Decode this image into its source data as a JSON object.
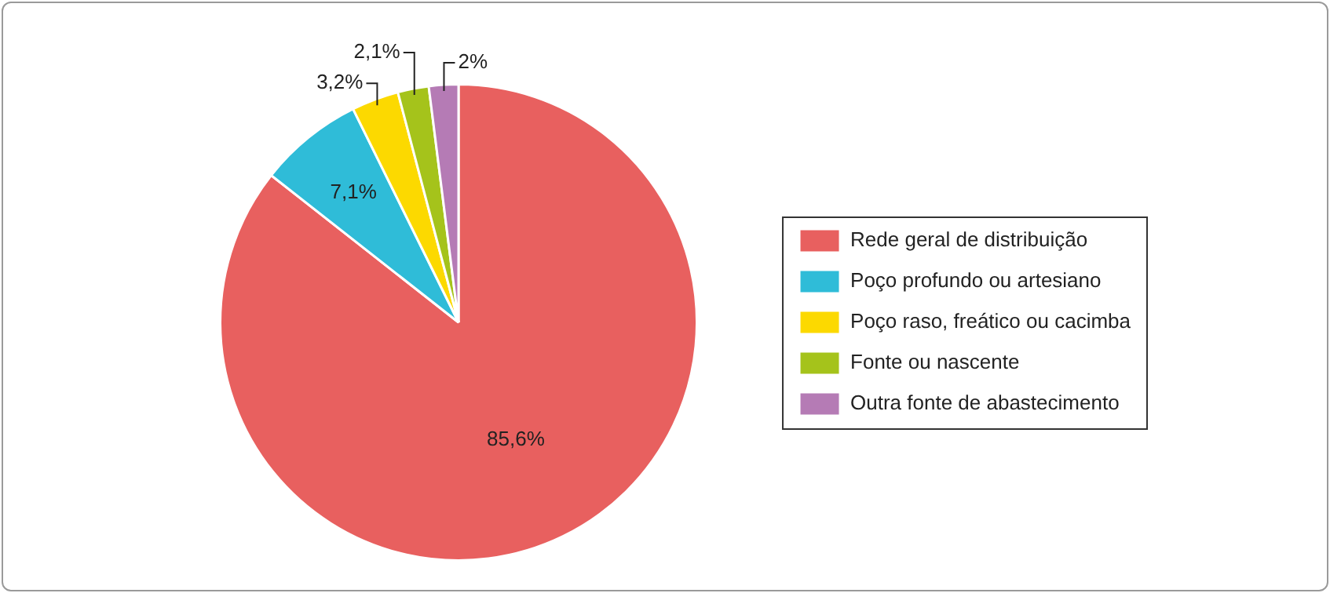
{
  "chart_data": {
    "type": "pie",
    "categories": [
      "Rede geral de distribuição",
      "Poço profundo ou artesiano",
      "Poço raso, freático ou cacimba",
      "Fonte ou nascente",
      "Outra fonte de abastecimento"
    ],
    "values": [
      85.6,
      7.1,
      3.2,
      2.1,
      2
    ],
    "value_labels": [
      "85,6%",
      "7,1%",
      "3,2%",
      "2,1%",
      "2%"
    ],
    "colors": [
      "#e8605f",
      "#2fbcd8",
      "#fcd900",
      "#a5c31b",
      "#b57bb5"
    ],
    "legend": "right"
  }
}
